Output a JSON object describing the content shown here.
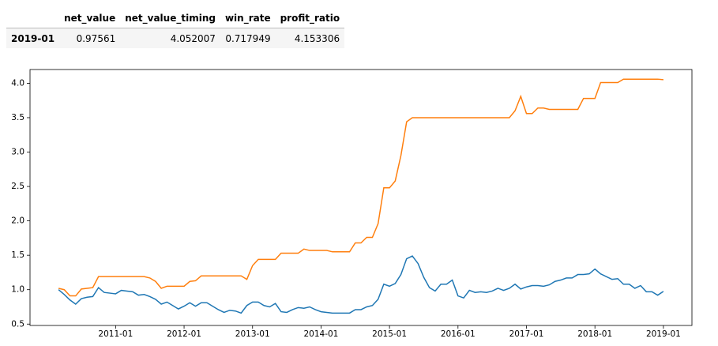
{
  "table": {
    "columns": [
      "net_value",
      "net_value_timing",
      "win_rate",
      "profit_ratio"
    ],
    "rows": [
      {
        "index": "2019-01",
        "values": [
          0.97561,
          4.052007,
          0.717949,
          4.153306
        ]
      }
    ]
  },
  "chart_data": {
    "type": "line",
    "x": [
      "2010-03",
      "2010-04",
      "2010-05",
      "2010-06",
      "2010-07",
      "2010-08",
      "2010-09",
      "2010-10",
      "2010-11",
      "2010-12",
      "2011-01",
      "2011-02",
      "2011-03",
      "2011-04",
      "2011-05",
      "2011-06",
      "2011-07",
      "2011-08",
      "2011-09",
      "2011-10",
      "2011-11",
      "2011-12",
      "2012-01",
      "2012-02",
      "2012-03",
      "2012-04",
      "2012-05",
      "2012-06",
      "2012-07",
      "2012-08",
      "2012-09",
      "2012-10",
      "2012-11",
      "2012-12",
      "2013-01",
      "2013-02",
      "2013-03",
      "2013-04",
      "2013-05",
      "2013-06",
      "2013-07",
      "2013-08",
      "2013-09",
      "2013-10",
      "2013-11",
      "2013-12",
      "2014-01",
      "2014-02",
      "2014-03",
      "2014-04",
      "2014-05",
      "2014-06",
      "2014-07",
      "2014-08",
      "2014-09",
      "2014-10",
      "2014-11",
      "2014-12",
      "2015-01",
      "2015-02",
      "2015-03",
      "2015-04",
      "2015-05",
      "2015-06",
      "2015-07",
      "2015-08",
      "2015-09",
      "2015-10",
      "2015-11",
      "2015-12",
      "2016-01",
      "2016-02",
      "2016-03",
      "2016-04",
      "2016-05",
      "2016-06",
      "2016-07",
      "2016-08",
      "2016-09",
      "2016-10",
      "2016-11",
      "2016-12",
      "2017-01",
      "2017-02",
      "2017-03",
      "2017-04",
      "2017-05",
      "2017-06",
      "2017-07",
      "2017-08",
      "2017-09",
      "2017-10",
      "2017-11",
      "2017-12",
      "2018-01",
      "2018-02",
      "2018-03",
      "2018-04",
      "2018-05",
      "2018-06",
      "2018-07",
      "2018-08",
      "2018-09",
      "2018-10",
      "2018-11",
      "2018-12",
      "2019-01"
    ],
    "series": [
      {
        "color": "#1f77b4",
        "values": [
          1.0,
          0.93,
          0.85,
          0.79,
          0.87,
          0.89,
          0.9,
          1.03,
          0.96,
          0.95,
          0.94,
          0.99,
          0.98,
          0.97,
          0.92,
          0.93,
          0.9,
          0.86,
          0.79,
          0.82,
          0.77,
          0.72,
          0.76,
          0.81,
          0.76,
          0.81,
          0.81,
          0.76,
          0.71,
          0.67,
          0.7,
          0.69,
          0.66,
          0.77,
          0.82,
          0.82,
          0.77,
          0.75,
          0.8,
          0.68,
          0.67,
          0.71,
          0.74,
          0.73,
          0.75,
          0.71,
          0.68,
          0.67,
          0.66,
          0.66,
          0.66,
          0.66,
          0.71,
          0.71,
          0.75,
          0.77,
          0.86,
          1.08,
          1.05,
          1.09,
          1.22,
          1.45,
          1.49,
          1.38,
          1.18,
          1.03,
          0.98,
          1.08,
          1.08,
          1.14,
          0.91,
          0.88,
          0.99,
          0.96,
          0.97,
          0.96,
          0.98,
          1.02,
          0.99,
          1.02,
          1.08,
          1.01,
          1.04,
          1.06,
          1.06,
          1.05,
          1.07,
          1.12,
          1.14,
          1.17,
          1.17,
          1.22,
          1.22,
          1.23,
          1.3,
          1.23,
          1.19,
          1.15,
          1.16,
          1.08,
          1.08,
          1.02,
          1.06,
          0.97,
          0.97,
          0.92,
          0.97561
        ]
      },
      {
        "color": "#ff7f0e",
        "values": [
          1.02,
          1.0,
          0.91,
          0.91,
          1.01,
          1.02,
          1.03,
          1.19,
          1.19,
          1.19,
          1.19,
          1.19,
          1.19,
          1.19,
          1.19,
          1.19,
          1.17,
          1.12,
          1.02,
          1.05,
          1.05,
          1.05,
          1.05,
          1.12,
          1.13,
          1.2,
          1.2,
          1.2,
          1.2,
          1.2,
          1.2,
          1.2,
          1.2,
          1.15,
          1.35,
          1.44,
          1.44,
          1.44,
          1.44,
          1.53,
          1.53,
          1.53,
          1.53,
          1.59,
          1.57,
          1.57,
          1.57,
          1.57,
          1.55,
          1.55,
          1.55,
          1.55,
          1.68,
          1.68,
          1.76,
          1.76,
          1.96,
          2.48,
          2.48,
          2.58,
          2.95,
          3.44,
          3.5,
          3.5,
          3.5,
          3.5,
          3.5,
          3.5,
          3.5,
          3.5,
          3.5,
          3.5,
          3.5,
          3.5,
          3.5,
          3.5,
          3.5,
          3.5,
          3.5,
          3.5,
          3.6,
          3.81,
          3.56,
          3.56,
          3.64,
          3.64,
          3.62,
          3.62,
          3.62,
          3.62,
          3.62,
          3.62,
          3.78,
          3.78,
          3.78,
          4.01,
          4.01,
          4.01,
          4.01,
          4.06,
          4.06,
          4.06,
          4.06,
          4.06,
          4.06,
          4.06,
          4.052007
        ]
      }
    ],
    "xlim": [
      "2009-10",
      "2019-06"
    ],
    "xticks": [
      "2011-01",
      "2012-01",
      "2013-01",
      "2014-01",
      "2015-01",
      "2016-01",
      "2017-01",
      "2018-01",
      "2019-01"
    ],
    "ylim": [
      0.48,
      4.2
    ],
    "yticks": [
      0.5,
      {
        "value": 1,
        "label": "1.0"
      },
      1.5,
      {
        "value": 2,
        "label": "2.0"
      },
      2.5,
      {
        "value": 3,
        "label": "3.0"
      },
      3.5,
      {
        "value": 4,
        "label": "4.0"
      }
    ]
  }
}
